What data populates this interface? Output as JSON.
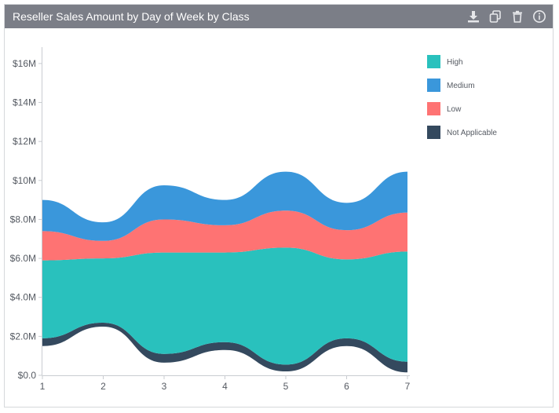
{
  "panel": {
    "title": "Reseller Sales Amount by Day of Week by Class",
    "tools": [
      {
        "icon": "download-icon"
      },
      {
        "icon": "copy-icon"
      },
      {
        "icon": "trash-icon"
      },
      {
        "icon": "info-icon"
      }
    ]
  },
  "chart_data": {
    "type": "area",
    "subtype": "streamgraph",
    "title": "Reseller Sales Amount by Day of Week by Class",
    "xlabel": "",
    "ylabel": "",
    "x": [
      1,
      2,
      3,
      4,
      5,
      6,
      7
    ],
    "y_tick_labels": [
      "$0.0",
      "$2.0M",
      "$4.0M",
      "$6.0M",
      "$8.0M",
      "$10M",
      "$12M",
      "$14M",
      "$16M"
    ],
    "ylim": [
      0,
      16600000
    ],
    "legend_position": "top-right",
    "grid": false,
    "series": [
      {
        "name": "Not Applicable",
        "color": "#34495e",
        "lower": [
          1500000,
          2500000,
          650000,
          1300000,
          200000,
          1500000,
          150000
        ],
        "upper": [
          1900000,
          2700000,
          1100000,
          1700000,
          550000,
          1900000,
          700000
        ]
      },
      {
        "name": "High",
        "color": "#29c1bd",
        "lower": [
          1900000,
          2700000,
          1100000,
          1700000,
          550000,
          1900000,
          700000
        ],
        "upper": [
          5900000,
          6000000,
          6300000,
          6300000,
          6550000,
          5950000,
          6350000
        ]
      },
      {
        "name": "Low",
        "color": "#fe7373",
        "lower": [
          5900000,
          6000000,
          6300000,
          6300000,
          6550000,
          5950000,
          6350000
        ],
        "upper": [
          7400000,
          6900000,
          8000000,
          7700000,
          8450000,
          7450000,
          8350000
        ]
      },
      {
        "name": "Medium",
        "color": "#3a97db",
        "lower": [
          7400000,
          6900000,
          8000000,
          7700000,
          8450000,
          7450000,
          8350000
        ],
        "upper": [
          9000000,
          7850000,
          9750000,
          9000000,
          10450000,
          8850000,
          10450000
        ]
      }
    ],
    "legend": [
      {
        "name": "High",
        "color": "#29c1bd"
      },
      {
        "name": "Medium",
        "color": "#3a97db"
      },
      {
        "name": "Low",
        "color": "#fe7373"
      },
      {
        "name": "Not Applicable",
        "color": "#34495e"
      }
    ]
  }
}
